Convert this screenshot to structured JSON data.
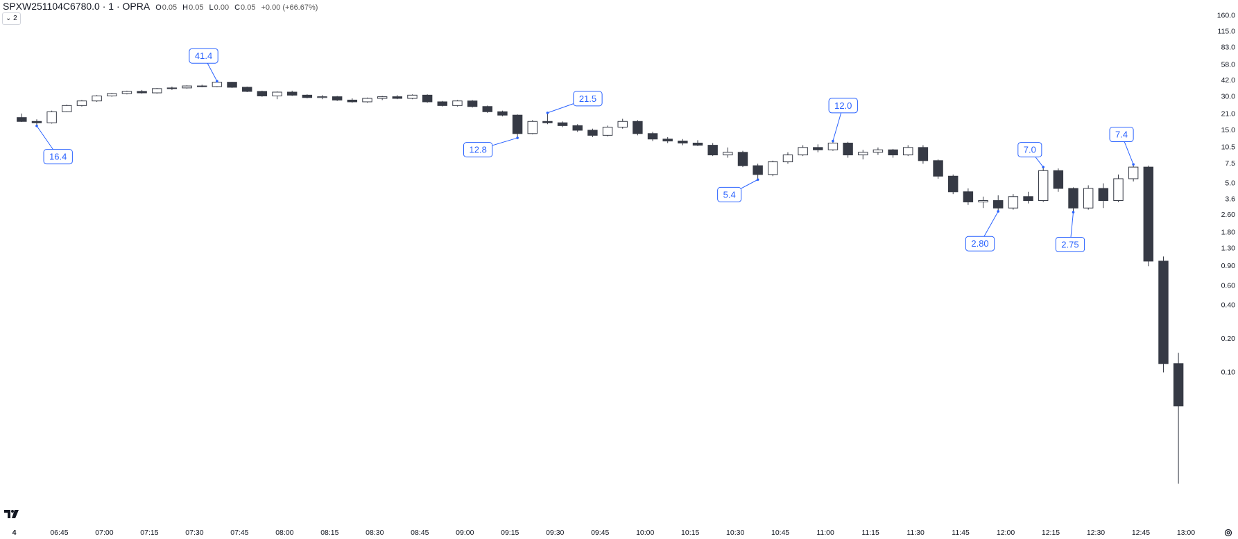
{
  "header": {
    "symbol": "SPXW251104C6780.0 · 1 · OPRA",
    "legend": [
      {
        "key": "O",
        "text": "0.05"
      },
      {
        "key": "H",
        "text": "0.05"
      },
      {
        "key": "L",
        "text": "0.00"
      },
      {
        "key": "C",
        "text": "0.05"
      }
    ],
    "change": "+0.00 (+66.67%)",
    "indicator_count": 2
  },
  "chart_data": {
    "type": "candlestick",
    "log_scale": true,
    "up_color": "#ffffff",
    "down_color": "#363a45",
    "edge_color": "#363a45",
    "annotation_color": "#2962ff",
    "x": [
      "06:30",
      "06:35",
      "06:40",
      "06:45",
      "06:50",
      "06:55",
      "07:00",
      "07:05",
      "07:10",
      "07:15",
      "07:20",
      "07:25",
      "07:30",
      "07:35",
      "07:40",
      "07:45",
      "07:50",
      "07:55",
      "08:00",
      "08:05",
      "08:10",
      "08:15",
      "08:20",
      "08:25",
      "08:30",
      "08:35",
      "08:40",
      "08:45",
      "08:50",
      "08:55",
      "09:00",
      "09:05",
      "09:10",
      "09:15",
      "09:20",
      "09:25",
      "09:30",
      "09:35",
      "09:40",
      "09:45",
      "09:50",
      "09:55",
      "10:00",
      "10:05",
      "10:10",
      "10:15",
      "10:20",
      "10:25",
      "10:30",
      "10:35",
      "10:40",
      "10:45",
      "10:50",
      "10:55",
      "11:00",
      "11:05",
      "11:10",
      "11:15",
      "11:20",
      "11:25",
      "11:30",
      "11:35",
      "11:40",
      "11:45",
      "11:50",
      "11:55",
      "12:00",
      "12:05",
      "12:10",
      "12:15",
      "12:20",
      "12:25",
      "12:30",
      "12:35",
      "12:40",
      "12:45",
      "12:50",
      "12:55"
    ],
    "open": [
      19.5,
      18.0,
      17.5,
      22.0,
      25.0,
      27.5,
      30.5,
      32.0,
      33.5,
      32.5,
      35.5,
      36.0,
      37.5,
      37.0,
      40.5,
      36.5,
      33.5,
      30.5,
      33.0,
      31.0,
      29.5,
      30.0,
      28.0,
      27.0,
      29.0,
      30.0,
      29.0,
      31.0,
      27.0,
      25.0,
      27.5,
      24.5,
      22.0,
      20.5,
      14.0,
      18.0,
      17.5,
      16.5,
      15.0,
      13.5,
      16.0,
      18.0,
      14.0,
      12.5,
      12.0,
      11.5,
      11.0,
      9.0,
      9.5,
      7.2,
      6.0,
      7.8,
      9.0,
      10.5,
      10.0,
      11.5,
      9.0,
      9.5,
      10.0,
      9.0,
      10.5,
      8.0,
      5.8,
      4.2,
      3.4,
      3.5,
      3.0,
      3.8,
      3.5,
      6.5,
      4.5,
      3.0,
      4.5,
      3.5,
      5.5,
      7.0,
      1.0,
      0.12
    ],
    "high": [
      21.2,
      18.8,
      22.5,
      25.5,
      28.0,
      31.0,
      32.5,
      34.0,
      34.5,
      36.0,
      37.0,
      38.0,
      38.5,
      41.4,
      40.8,
      37.0,
      34.0,
      33.5,
      34.0,
      31.5,
      31.0,
      30.5,
      29.0,
      29.5,
      30.5,
      31.0,
      31.5,
      31.5,
      27.5,
      28.0,
      28.0,
      25.0,
      22.5,
      20.8,
      18.5,
      21.5,
      18.0,
      17.0,
      15.5,
      16.5,
      19.0,
      18.5,
      14.5,
      13.0,
      12.5,
      12.2,
      11.5,
      10.5,
      9.8,
      7.5,
      8.0,
      9.5,
      11.0,
      11.2,
      12.0,
      11.8,
      10.0,
      10.5,
      10.2,
      11.0,
      11.0,
      8.2,
      6.0,
      4.5,
      3.8,
      3.9,
      4.0,
      4.2,
      7.0,
      6.8,
      4.6,
      4.8,
      5.0,
      6.0,
      7.4,
      7.2,
      1.1,
      0.15
    ],
    "low": [
      17.8,
      16.4,
      17.2,
      21.8,
      24.5,
      27.0,
      30.0,
      31.5,
      32.0,
      32.0,
      34.5,
      35.5,
      36.5,
      36.5,
      36.0,
      33.0,
      30.0,
      28.5,
      30.5,
      29.0,
      28.5,
      27.5,
      26.5,
      26.5,
      28.0,
      28.5,
      28.5,
      26.5,
      24.5,
      24.5,
      24.0,
      21.5,
      20.0,
      12.8,
      13.8,
      17.0,
      16.0,
      14.5,
      13.0,
      13.2,
      15.5,
      13.5,
      12.0,
      11.5,
      11.0,
      10.8,
      8.8,
      8.5,
      7.0,
      5.4,
      5.8,
      7.5,
      8.8,
      9.5,
      9.8,
      8.5,
      8.2,
      9.0,
      8.5,
      8.8,
      7.5,
      5.5,
      4.0,
      3.2,
      3.0,
      2.8,
      2.9,
      3.3,
      3.4,
      4.2,
      2.75,
      2.9,
      3.0,
      3.4,
      5.2,
      0.9,
      0.1,
      0.01
    ],
    "close": [
      18.0,
      17.5,
      22.0,
      25.0,
      27.5,
      30.5,
      32.0,
      33.5,
      32.5,
      35.5,
      36.0,
      37.5,
      37.0,
      40.5,
      36.5,
      33.5,
      30.5,
      33.0,
      31.0,
      29.5,
      30.0,
      28.0,
      27.0,
      29.0,
      30.0,
      29.0,
      31.0,
      27.0,
      25.0,
      27.5,
      24.5,
      22.0,
      20.5,
      14.0,
      18.0,
      17.5,
      16.5,
      15.0,
      13.5,
      16.0,
      18.0,
      14.0,
      12.5,
      12.0,
      11.5,
      11.0,
      9.0,
      9.5,
      7.2,
      6.0,
      7.8,
      9.0,
      10.5,
      10.0,
      11.5,
      9.0,
      9.5,
      10.0,
      9.0,
      10.5,
      8.0,
      5.8,
      4.2,
      3.4,
      3.5,
      3.0,
      3.8,
      3.5,
      6.5,
      4.5,
      3.0,
      4.5,
      3.5,
      5.5,
      7.0,
      1.0,
      0.12,
      0.05
    ],
    "ylim": [
      0.0043,
      222
    ],
    "yticks": [
      {
        "value": 160,
        "label": "160.0"
      },
      {
        "value": 115,
        "label": "115.0"
      },
      {
        "value": 83,
        "label": "83.0"
      },
      {
        "value": 58,
        "label": "58.0"
      },
      {
        "value": 42,
        "label": "42.0"
      },
      {
        "value": 30,
        "label": "30.0"
      },
      {
        "value": 21,
        "label": "21.0"
      },
      {
        "value": 15,
        "label": "15.0"
      },
      10.5,
      7.5,
      {
        "value": 5,
        "label": "5.0"
      },
      3.6,
      {
        "value": 2.6,
        "label": "2.60"
      },
      {
        "value": 1.8,
        "label": "1.80"
      },
      {
        "value": 1.3,
        "label": "1.30"
      },
      {
        "value": 0.9,
        "label": "0.90"
      },
      {
        "value": 0.6,
        "label": "0.60"
      },
      {
        "value": 0.4,
        "label": "0.40"
      },
      {
        "value": 0.2,
        "label": "0.20"
      },
      {
        "value": 0.1,
        "label": "0.10"
      }
    ],
    "xticks": [
      "4",
      "06:45",
      "07:00",
      "07:15",
      "07:30",
      "07:45",
      "08:00",
      "08:15",
      "08:30",
      "08:45",
      "09:00",
      "09:15",
      "09:30",
      "09:45",
      "10:00",
      "10:15",
      "10:30",
      "10:45",
      "11:00",
      "11:15",
      "11:30",
      "11:45",
      "12:00",
      "12:15",
      "12:30",
      "12:45",
      "13:00"
    ],
    "annotations": [
      41.4,
      16.4,
      21.5,
      12.8,
      {
        "value": 12,
        "label": "12.0"
      },
      5.4,
      {
        "value": 2.8,
        "label": "2.80"
      },
      {
        "value": 7,
        "label": "7.0"
      },
      2.75,
      7.4
    ]
  }
}
